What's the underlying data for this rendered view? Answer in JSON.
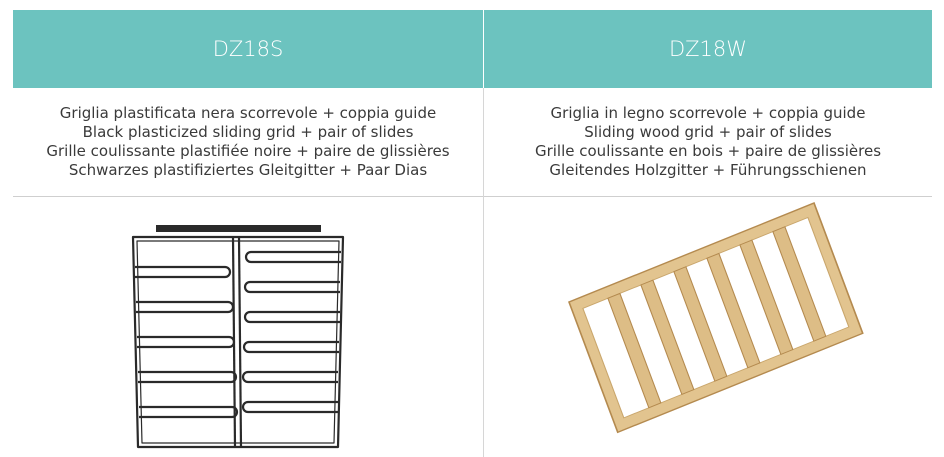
{
  "table": {
    "headers": [
      "DZ18S",
      "DZ18W"
    ],
    "rows": [
      [
        [
          "Griglia plastificata nera scorrevole + coppia guide",
          "Black plasticized sliding grid + pair of slides",
          "Grille coulissante plastifiée noire + paire de glissières",
          "Schwarzes plastifiziertes Gleitgitter + Paar Dias"
        ],
        [
          "Griglia in legno scorrevole + coppia guide",
          "Sliding wood grid + pair of slides",
          "Grille coulissante en bois + paire de glissières",
          "Gleitendes Holzgitter + Führungsschienen"
        ]
      ]
    ]
  }
}
